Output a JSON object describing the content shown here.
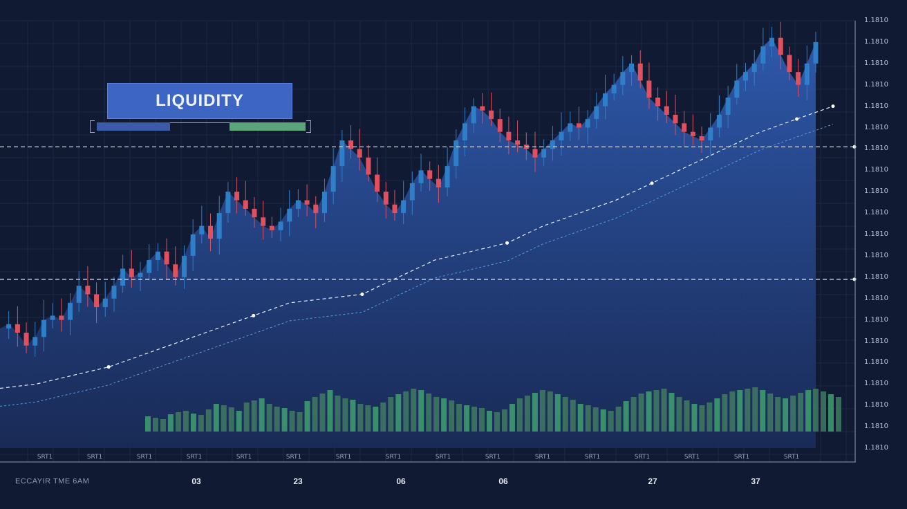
{
  "title": "LIQUIDITY",
  "liquidity_meter": {
    "blue_fraction": 0.36,
    "green_fraction": 0.34
  },
  "footer_label": "ECCAYIR TME 6AM",
  "colors": {
    "bg": "#111a33",
    "area": "#2d54a0",
    "up": "#2f7fc8",
    "down": "#e0505f",
    "vol_green": "#3fa070",
    "accent": "#3d66c4"
  },
  "chart_data": {
    "type": "candlestick",
    "y_tick_labels": [
      "1.1810",
      "1.1810",
      "1.1810",
      "1.1810",
      "1.1810",
      "1.1810",
      "1.1810",
      "1.1810",
      "1.1810",
      "1.1810",
      "1.1810",
      "1.1810",
      "1.1810",
      "1.1810",
      "1.1810",
      "1.1810",
      "1.1810",
      "1.1810",
      "1.1810",
      "1.1810",
      "1.1810"
    ],
    "x_tick_labels": [
      "SRT1",
      "SRT1",
      "SRT1",
      "SRT1",
      "SRT1",
      "SRT1",
      "SRT1",
      "SRT1",
      "SRT1",
      "SRT1",
      "SRT1",
      "SRT1",
      "SRT1",
      "SRT1",
      "SRT1",
      "SRT1"
    ],
    "date_labels": [
      "03",
      "23",
      "06",
      "06",
      "27",
      "37"
    ],
    "ylim": [
      0,
      100
    ],
    "liquidity_levels": [
      70.5,
      39.5
    ],
    "price_path": [
      28,
      29,
      27,
      24,
      26,
      30,
      31,
      30,
      34,
      38,
      36,
      33,
      35,
      38,
      42,
      40,
      41,
      44,
      46,
      43,
      40,
      45,
      50,
      52,
      49,
      55,
      60,
      58,
      56,
      54,
      52,
      51,
      53,
      56,
      58,
      57,
      55,
      60,
      66,
      72,
      70,
      68,
      64,
      60,
      57,
      55,
      58,
      62,
      65,
      63,
      61,
      66,
      72,
      76,
      80,
      79,
      77,
      74,
      72,
      71,
      70,
      68,
      70,
      72,
      74,
      76,
      75,
      77,
      80,
      83,
      85,
      88,
      90,
      86,
      82,
      80,
      78,
      76,
      74,
      73,
      72,
      75,
      78,
      82,
      86,
      88,
      90,
      94,
      96,
      92,
      88,
      85,
      90,
      95
    ],
    "avg_line": [
      14,
      15,
      17,
      19,
      22,
      25,
      28,
      31,
      34,
      35,
      36,
      40,
      44,
      46,
      48,
      52,
      55,
      58,
      62,
      66,
      70,
      74,
      77,
      80
    ],
    "volume": [
      22,
      20,
      18,
      25,
      28,
      30,
      26,
      24,
      32,
      40,
      38,
      35,
      30,
      42,
      45,
      48,
      40,
      36,
      34,
      30,
      28,
      44,
      50,
      55,
      60,
      52,
      48,
      46,
      40,
      38,
      36,
      42,
      50,
      54,
      58,
      62,
      60,
      55,
      50,
      48,
      45,
      40,
      38,
      36,
      34,
      30,
      28,
      32,
      40,
      48,
      52,
      56,
      60,
      58,
      54,
      50,
      46,
      40,
      38,
      35,
      32,
      30,
      36,
      44,
      50,
      55,
      58,
      60,
      62,
      56,
      50,
      45,
      40,
      38,
      42,
      48,
      54,
      58,
      60,
      62,
      64,
      60,
      55,
      50,
      48,
      52,
      56,
      60,
      62,
      58,
      54,
      50
    ]
  }
}
